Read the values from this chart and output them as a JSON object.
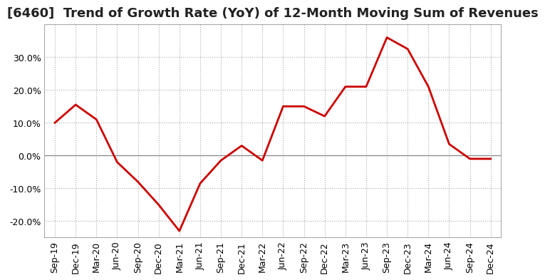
{
  "title": "[6460]  Trend of Growth Rate (YoY) of 12-Month Moving Sum of Revenues",
  "x_labels": [
    "Sep-19",
    "Dec-19",
    "Mar-20",
    "Jun-20",
    "Sep-20",
    "Dec-20",
    "Mar-21",
    "Jun-21",
    "Sep-21",
    "Dec-21",
    "Mar-22",
    "Jun-22",
    "Sep-22",
    "Dec-22",
    "Mar-23",
    "Jun-23",
    "Sep-23",
    "Dec-23",
    "Mar-24",
    "Jun-24",
    "Sep-24",
    "Dec-24"
  ],
  "y_values": [
    10.0,
    15.5,
    11.0,
    -2.0,
    -8.0,
    -15.0,
    -23.0,
    -8.5,
    -1.5,
    3.0,
    -1.5,
    15.0,
    15.0,
    12.0,
    21.0,
    21.0,
    36.0,
    32.5,
    21.0,
    3.5,
    -1.0,
    -1.0
  ],
  "line_color": "#cc0000",
  "ylim": [
    -25,
    40
  ],
  "yticks": [
    -20.0,
    -10.0,
    0.0,
    10.0,
    20.0,
    30.0
  ],
  "background_color": "#ffffff",
  "grid_color": "#aaaaaa",
  "zero_line_color": "#888888",
  "title_fontsize": 13,
  "tick_fontsize": 9
}
